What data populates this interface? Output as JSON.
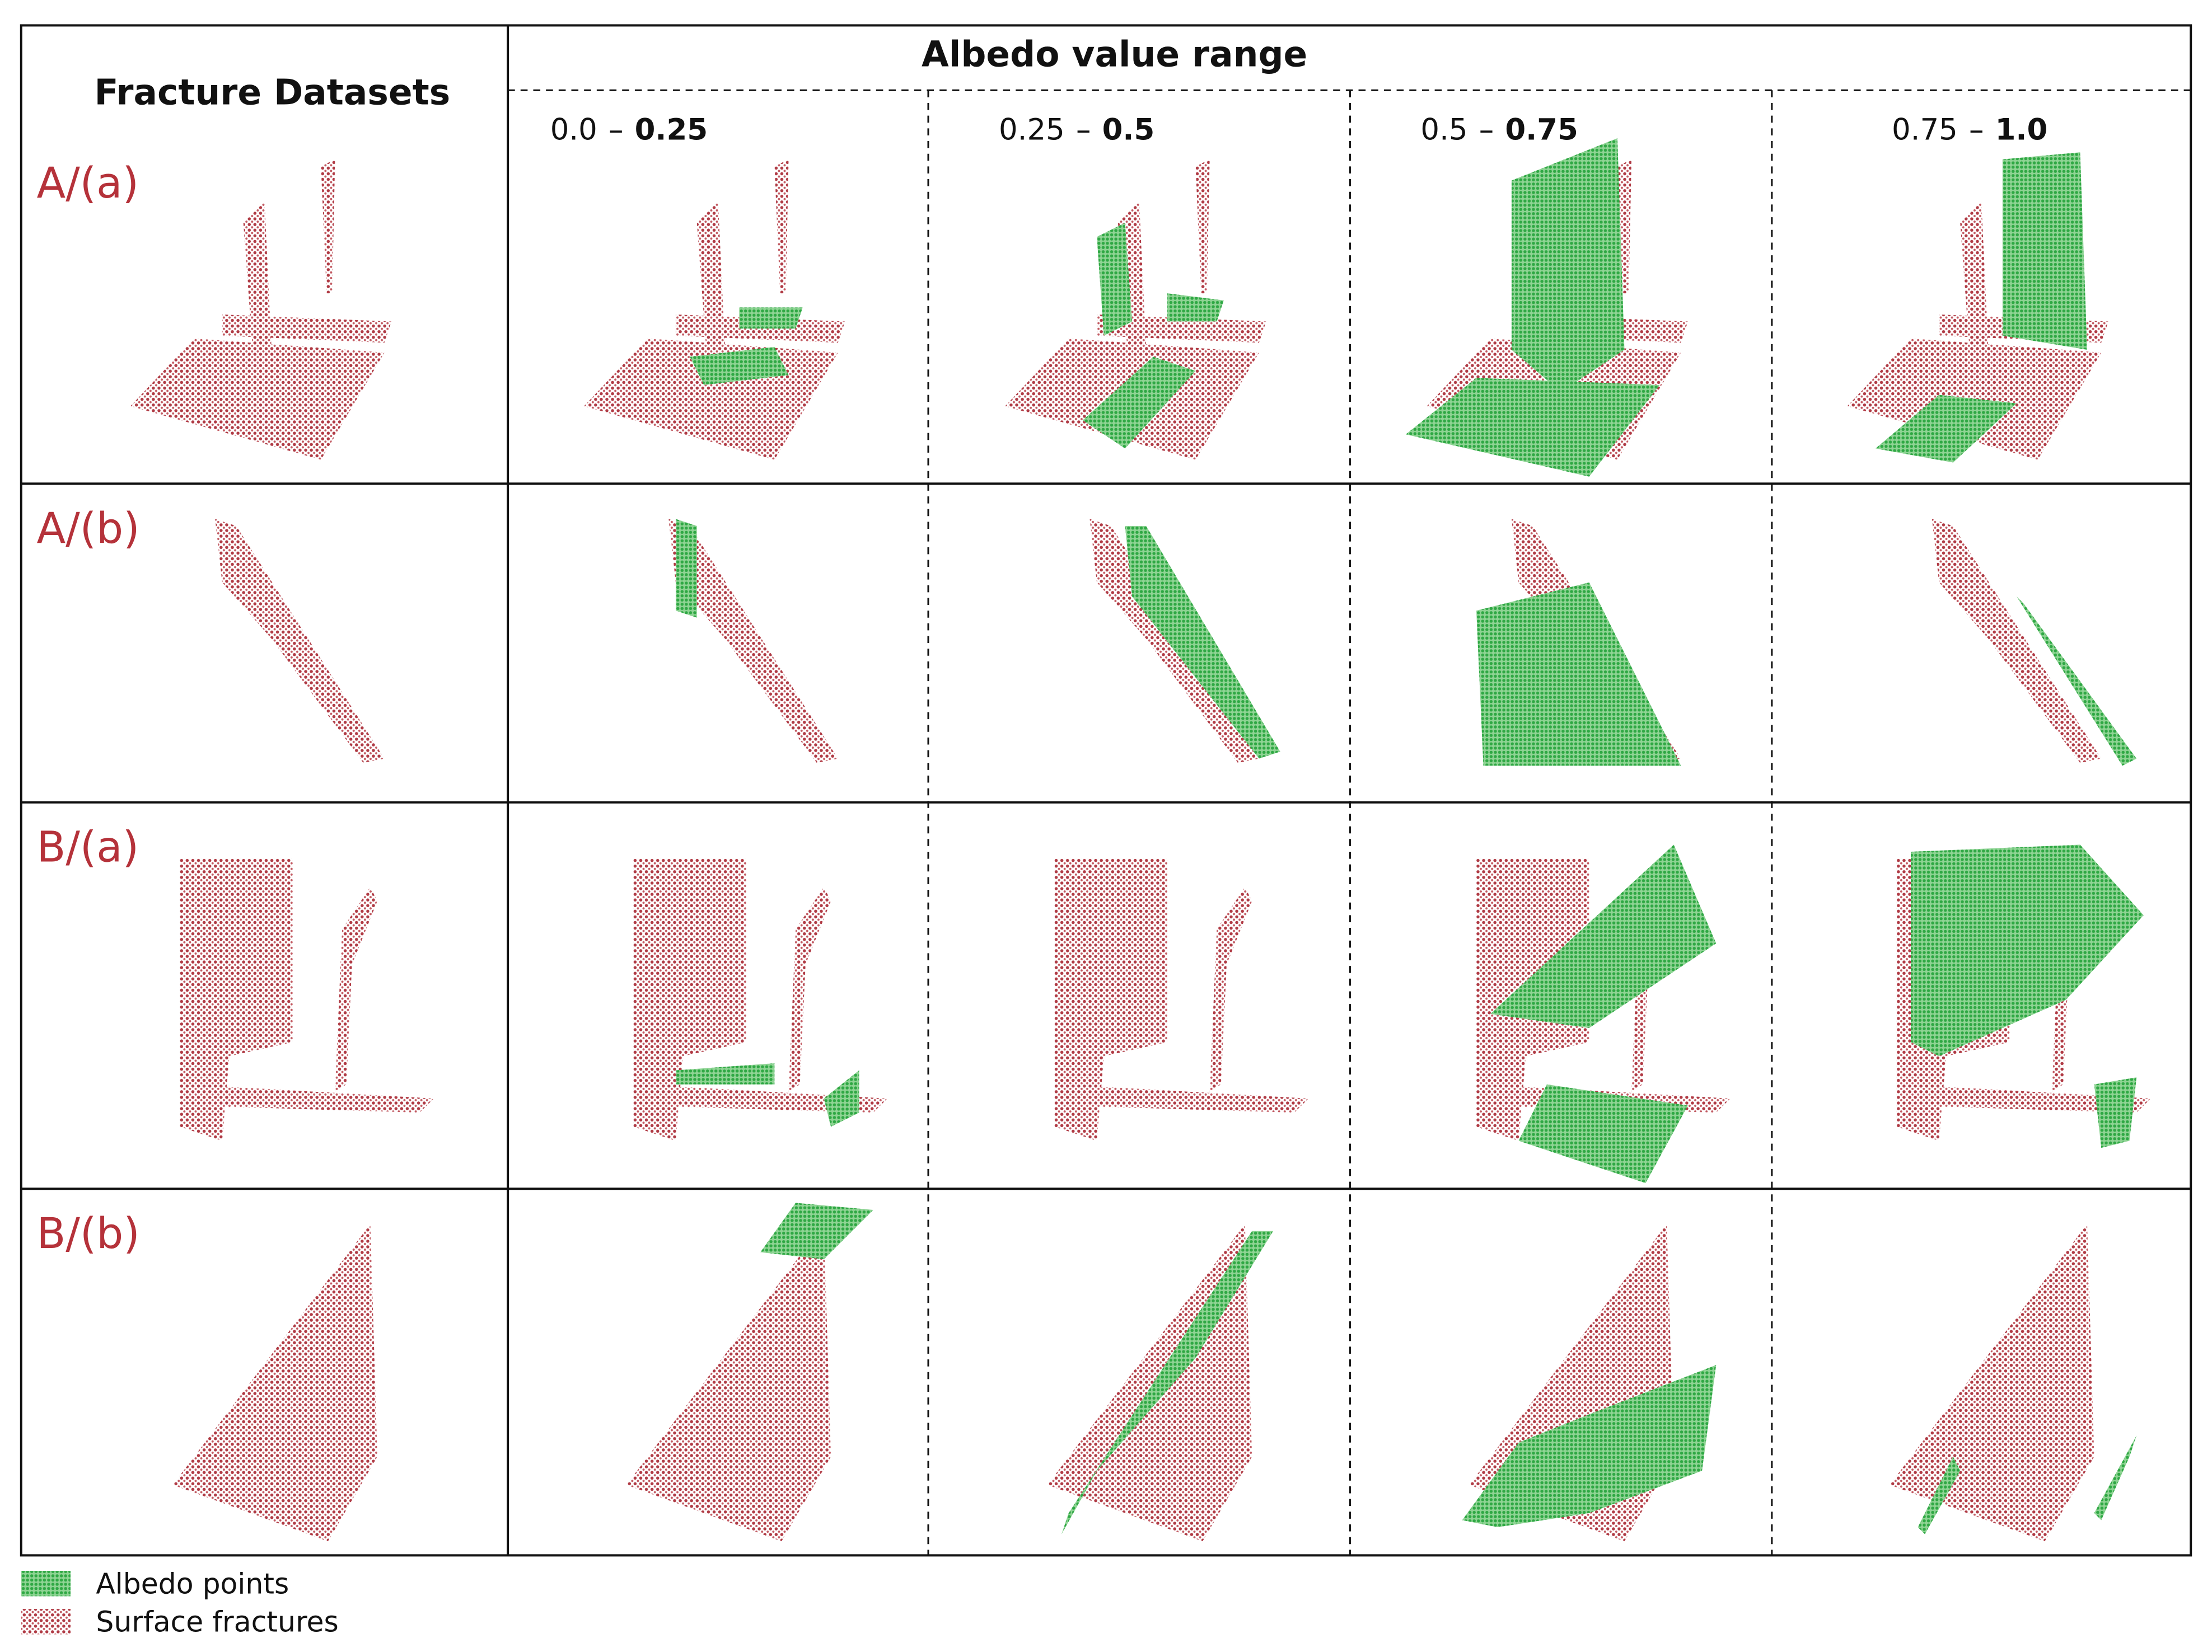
{
  "header": {
    "left_title": "Fracture Datasets",
    "group_title": "Albedo value range"
  },
  "columns": [
    {
      "low": "0.0",
      "high": "0.25"
    },
    {
      "low": "0.25",
      "high": "0.5"
    },
    {
      "low": "0.5",
      "high": "0.75"
    },
    {
      "low": "0.75",
      "high": "1.0"
    }
  ],
  "range_separator": "–",
  "rows": [
    {
      "label": "A/(a)"
    },
    {
      "label": "A/(b)"
    },
    {
      "label": "B/(a)"
    },
    {
      "label": "B/(b)"
    }
  ],
  "legend": [
    {
      "label": "Albedo points"
    },
    {
      "label": "Surface fractures"
    }
  ]
}
